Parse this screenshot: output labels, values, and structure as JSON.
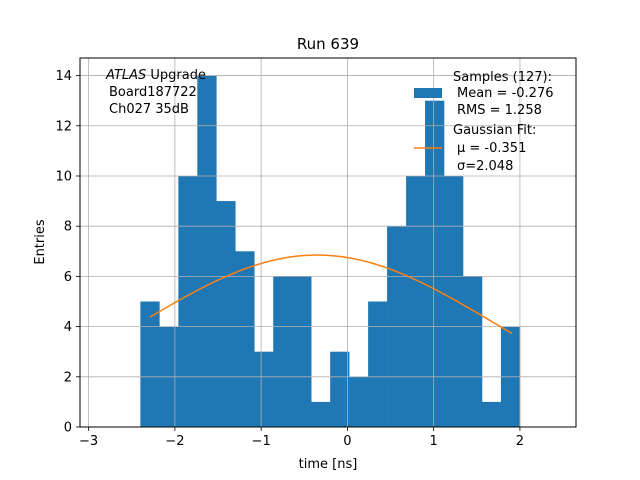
{
  "chart_data": {
    "type": "bar",
    "title": "Run 639",
    "xlabel": "time [ns]",
    "ylabel": "Entries",
    "xlim": [
      -3.1,
      2.65
    ],
    "ylim": [
      0,
      14.7
    ],
    "grid": true,
    "xticks": [
      -3,
      -2,
      -1,
      0,
      1,
      2
    ],
    "xtick_labels": [
      "−3",
      "−2",
      "−1",
      "0",
      "1",
      "2"
    ],
    "yticks": [
      0,
      2,
      4,
      6,
      8,
      10,
      12,
      14
    ],
    "ytick_labels": [
      "0",
      "2",
      "4",
      "6",
      "8",
      "10",
      "12",
      "14"
    ],
    "bar_color": "#1f77b4",
    "fit_color": "#ff7f0e",
    "bins": [
      {
        "left": -2.4,
        "right": -2.18,
        "count": 5
      },
      {
        "left": -2.18,
        "right": -1.96,
        "count": 4
      },
      {
        "left": -1.96,
        "right": -1.74,
        "count": 10
      },
      {
        "left": -1.74,
        "right": -1.52,
        "count": 14
      },
      {
        "left": -1.52,
        "right": -1.3,
        "count": 9
      },
      {
        "left": -1.3,
        "right": -1.08,
        "count": 7
      },
      {
        "left": -1.08,
        "right": -0.86,
        "count": 3
      },
      {
        "left": -0.86,
        "right": -0.64,
        "count": 6
      },
      {
        "left": -0.64,
        "right": -0.42,
        "count": 6
      },
      {
        "left": -0.42,
        "right": -0.2,
        "count": 1
      },
      {
        "left": -0.2,
        "right": 0.02,
        "count": 3
      },
      {
        "left": 0.02,
        "right": 0.24,
        "count": 2
      },
      {
        "left": 0.24,
        "right": 0.46,
        "count": 5
      },
      {
        "left": 0.46,
        "right": 0.68,
        "count": 8
      },
      {
        "left": 0.68,
        "right": 0.9,
        "count": 10
      },
      {
        "left": 0.9,
        "right": 1.12,
        "count": 13
      },
      {
        "left": 1.12,
        "right": 1.34,
        "count": 10
      },
      {
        "left": 1.34,
        "right": 1.56,
        "count": 6
      },
      {
        "left": 1.56,
        "right": 1.78,
        "count": 1
      },
      {
        "left": 1.78,
        "right": 2.0,
        "count": 4
      }
    ],
    "gaussian_fit": {
      "amplitude": 6.85,
      "mu": -0.351,
      "sigma": 2.048,
      "x_range": [
        -2.29,
        1.91
      ]
    },
    "annotation": {
      "label_italic": "ATLAS",
      "label_rest": " Upgrade",
      "line2": "Board187722",
      "line3": "Ch027 35dB"
    },
    "legend": {
      "position": "top-right",
      "samples_title": "Samples (127):",
      "samples_mean": "Mean = -0.276",
      "samples_rms": "RMS = 1.258",
      "fit_title": "Gaussian Fit:",
      "fit_mu": "μ = -0.351",
      "fit_sigma": "σ=2.048"
    }
  }
}
